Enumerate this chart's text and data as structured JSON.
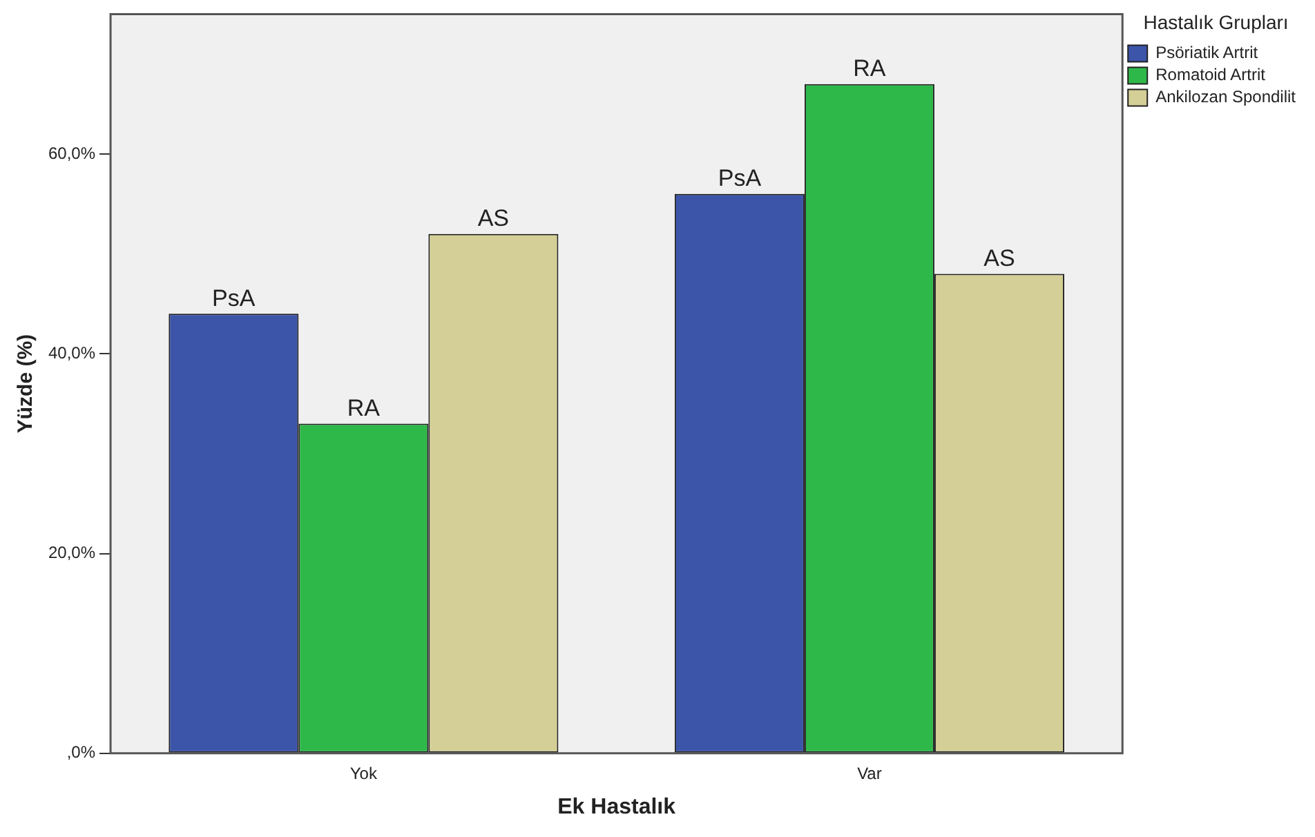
{
  "chart_data": {
    "type": "bar",
    "xlabel": "Ek Hastalık",
    "ylabel": "Yüzde (%)",
    "legend_title": "Hastalık Grupları",
    "categories": [
      "Yok",
      "Var"
    ],
    "series": [
      {
        "name": "Psöriatik Artrit",
        "color": "#3c55a9",
        "values": [
          44,
          56
        ],
        "value_labels": [
          "PsA",
          "PsA"
        ]
      },
      {
        "name": "Romatoid Artrit",
        "color": "#2fb84a",
        "values": [
          33,
          67
        ],
        "value_labels": [
          "RA",
          "RA"
        ]
      },
      {
        "name": "Ankilozan Spondilit",
        "color": "#d4cf96",
        "values": [
          52,
          48
        ],
        "value_labels": [
          "AS",
          "AS"
        ]
      }
    ],
    "ylim": [
      0,
      74
    ],
    "yticks": [
      {
        "value": 0,
        "label": ",0%"
      },
      {
        "value": 20,
        "label": "20,0%"
      },
      {
        "value": 40,
        "label": "40,0%"
      },
      {
        "value": 60,
        "label": "60,0%"
      }
    ],
    "grid": false,
    "legend": "top right"
  }
}
